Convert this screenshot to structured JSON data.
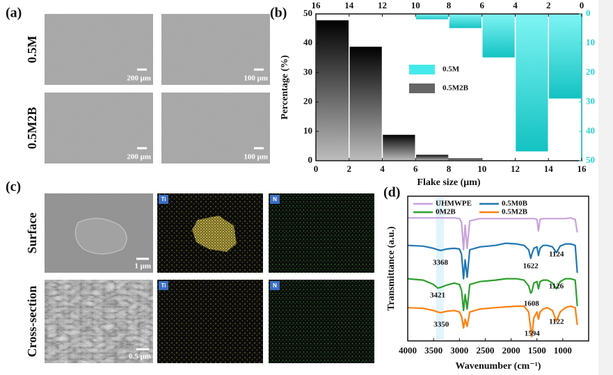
{
  "panel_a": {
    "label": "(a)",
    "rows": [
      "0.5M",
      "0.5M2B"
    ],
    "scale_bars": [
      [
        "200 μm",
        "100 μm"
      ],
      [
        "200 μm",
        "100 μm"
      ]
    ]
  },
  "panel_c": {
    "label": "(c)",
    "rows": [
      "Surface",
      "Cross-section"
    ],
    "scale_bars": [
      "1 μm",
      "0.5 μm"
    ],
    "elements": [
      "Ti",
      "N"
    ]
  },
  "chart_data": [
    {
      "type": "histogram",
      "panel_label": "(b)",
      "xlabel": "Flake size (μm)",
      "ylabel": "Percentage (%)",
      "xlim": [
        0,
        16
      ],
      "xticks": [
        0,
        2,
        4,
        6,
        8,
        10,
        12,
        14,
        16
      ],
      "ylim": [
        0,
        50
      ],
      "yticks": [
        0,
        10,
        20,
        30,
        40,
        50
      ],
      "x2lim": [
        16,
        0
      ],
      "x2ticks": [
        16,
        14,
        12,
        10,
        8,
        6,
        4,
        2,
        0
      ],
      "y2lim": [
        50,
        0
      ],
      "y2ticks": [
        0,
        10,
        20,
        30,
        40,
        50
      ],
      "y2color": "#2ad4d4",
      "legend": "center",
      "series": [
        {
          "name": "0.5M",
          "color": "#44eaea",
          "axis": "y2",
          "xaxis": "x2",
          "bins": [
            0,
            2,
            4,
            6,
            8,
            10,
            12
          ],
          "values": [
            29,
            47,
            15,
            5,
            2,
            0.3
          ]
        },
        {
          "name": "0.5M2B",
          "color": "#666666",
          "bins": [
            0,
            2,
            4,
            6,
            8,
            10
          ],
          "values": [
            48,
            39,
            9,
            2.2,
            1
          ]
        }
      ]
    },
    {
      "type": "line",
      "panel_label": "(d)",
      "xlabel": "Wavenumber (cm⁻¹)",
      "ylabel": "Transmittance (a.u.)",
      "xlim": [
        4000,
        500
      ],
      "xticks": [
        4000,
        3500,
        3000,
        2500,
        2000,
        1500,
        1000
      ],
      "ylim": [
        0,
        10
      ],
      "highlight": [
        3450,
        3300
      ],
      "highlight_color": "#e2f4fb",
      "legend": "top",
      "x": [
        4000,
        3700,
        3500,
        3420,
        3360,
        3250,
        3100,
        3000,
        2960,
        2920,
        2890,
        2850,
        2800,
        2600,
        2300,
        2100,
        1900,
        1750,
        1660,
        1620,
        1600,
        1560,
        1500,
        1470,
        1440,
        1380,
        1300,
        1200,
        1124,
        1050,
        950,
        850,
        760,
        720
      ],
      "series": [
        {
          "name": "UHMWPE",
          "color": "#c8a2dc",
          "values": [
            8.5,
            8.5,
            8.5,
            8.5,
            8.5,
            8.5,
            8.5,
            8.45,
            8.2,
            6.3,
            8.0,
            6.4,
            8.3,
            8.45,
            8.45,
            8.45,
            8.45,
            8.45,
            8.45,
            8.45,
            8.45,
            8.45,
            8.4,
            7.6,
            8.4,
            8.45,
            8.45,
            8.45,
            8.45,
            8.45,
            8.45,
            8.5,
            8.4,
            7.5
          ]
        },
        {
          "name": "0.5M0B",
          "color": "#1f77b4",
          "values": [
            6.6,
            6.55,
            6.4,
            6.3,
            6.25,
            6.35,
            6.4,
            6.35,
            6.0,
            4.3,
            5.6,
            4.4,
            6.3,
            6.5,
            6.6,
            6.75,
            6.7,
            6.6,
            6.3,
            5.7,
            6.0,
            6.4,
            6.5,
            5.9,
            6.4,
            6.6,
            6.6,
            6.5,
            6.1,
            6.55,
            6.7,
            6.7,
            6.6,
            4.7
          ]
        },
        {
          "name": "0M2B",
          "color": "#2ca02c",
          "values": [
            4.3,
            4.2,
            3.9,
            3.65,
            3.7,
            3.85,
            4.0,
            3.9,
            3.5,
            2.1,
            3.2,
            2.2,
            3.9,
            4.1,
            4.2,
            4.3,
            4.3,
            4.2,
            3.8,
            3.3,
            3.4,
            4.0,
            4.1,
            3.6,
            4.1,
            4.2,
            4.2,
            4.0,
            3.6,
            4.1,
            4.3,
            4.3,
            4.2,
            2.4
          ]
        },
        {
          "name": "0.5M2B",
          "color": "#ff7f0e",
          "values": [
            2.3,
            2.25,
            2.1,
            2.0,
            1.95,
            2.05,
            2.1,
            2.0,
            1.7,
            0.9,
            1.5,
            1.0,
            2.0,
            2.2,
            2.3,
            2.35,
            2.4,
            2.4,
            2.0,
            0.8,
            0.3,
            1.6,
            2.0,
            1.5,
            2.0,
            2.2,
            2.3,
            2.1,
            1.35,
            2.0,
            2.3,
            2.4,
            2.3,
            1.1
          ]
        }
      ],
      "annotations": [
        [
          3368,
          1622,
          1124
        ],
        [
          3421,
          1608,
          1126
        ],
        [
          3350,
          1594,
          1122
        ]
      ]
    }
  ]
}
